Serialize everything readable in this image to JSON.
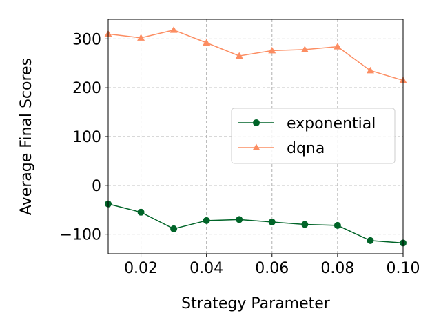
{
  "chart_data": {
    "type": "line",
    "title": "",
    "xlabel": "Strategy Parameter",
    "ylabel": "Average Final Scores",
    "xlim": [
      0.01,
      0.1
    ],
    "ylim": [
      -140,
      340
    ],
    "xticks": [
      0.02,
      0.04,
      0.06,
      0.08,
      0.1
    ],
    "xtick_labels": [
      "0.02",
      "0.04",
      "0.06",
      "0.08",
      "0.10"
    ],
    "yticks": [
      -100,
      0,
      100,
      200,
      300
    ],
    "ytick_labels": [
      "−100",
      "0",
      "100",
      "200",
      "300"
    ],
    "grid": true,
    "legend_position": "center-right",
    "x": [
      0.01,
      0.02,
      0.03,
      0.04,
      0.05,
      0.06,
      0.07,
      0.08,
      0.09,
      0.1
    ],
    "series": [
      {
        "name": "exponential",
        "color": "#006428",
        "marker": "circle",
        "values": [
          -38,
          -55,
          -89,
          -72,
          -70,
          -75,
          -80,
          -82,
          -113,
          -118
        ]
      },
      {
        "name": "dqna",
        "color": "#fc8d62",
        "marker": "triangle",
        "values": [
          310,
          302,
          318,
          292,
          265,
          276,
          278,
          284,
          235,
          215
        ]
      }
    ]
  }
}
